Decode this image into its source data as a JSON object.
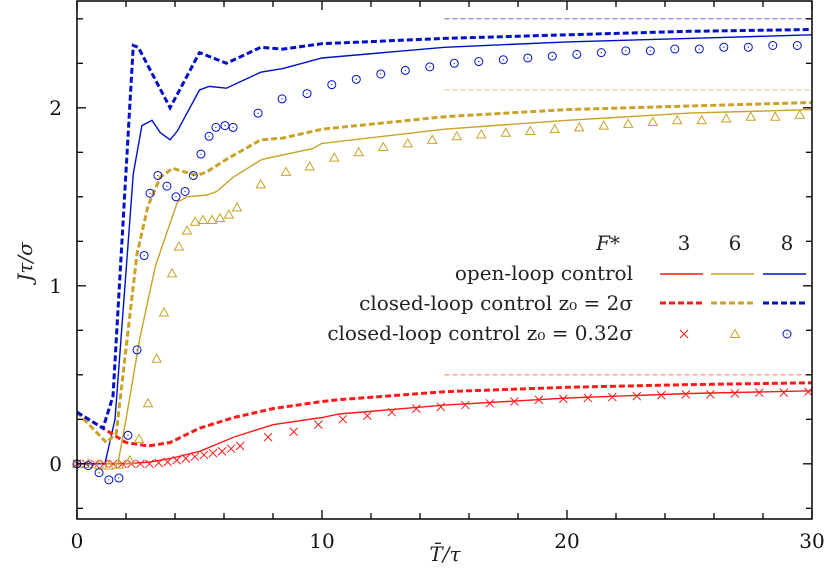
{
  "chart_data": {
    "type": "line",
    "xlabel": "T̄/τ",
    "ylabel": "Jτ/σ",
    "xlim": [
      0,
      30
    ],
    "ylim": [
      -0.31,
      2.6
    ],
    "xticks": [
      0,
      10,
      20,
      30
    ],
    "yticks": [
      0,
      1,
      2
    ],
    "grid": false,
    "legend": {
      "placement": "center-right",
      "header_label": "F*",
      "columns": [
        "3",
        "6",
        "8"
      ],
      "rows": [
        "open-loop control",
        "closed-loop control z₀ = 2σ",
        "closed-loop control z₀ = 0.32σ"
      ]
    },
    "colors": {
      "F3": "#ff1a1a",
      "F6": "#c9a227",
      "F8": "#0010c8"
    },
    "reference_lines": [
      {
        "F": "3",
        "y": 0.5,
        "x_from": 15,
        "x_to": 30
      },
      {
        "F": "6",
        "y": 2.1,
        "x_from": 15,
        "x_to": 30
      },
      {
        "F": "8",
        "y": 2.5,
        "x_from": 15,
        "x_to": 30
      }
    ],
    "series": [
      {
        "F": "3",
        "control": "open-loop",
        "style": "solid",
        "x": [
          0,
          1,
          2,
          3,
          3.8,
          5,
          6.4,
          8,
          10,
          10.7,
          15,
          20,
          25,
          30
        ],
        "y": [
          0,
          0,
          0,
          0.01,
          0.03,
          0.07,
          0.15,
          0.22,
          0.26,
          0.28,
          0.33,
          0.37,
          0.395,
          0.41
        ]
      },
      {
        "F": "6",
        "control": "open-loop",
        "style": "solid",
        "x": [
          0,
          1,
          1.67,
          2.0,
          2.57,
          3.2,
          3.67,
          4.1,
          4.5,
          5.3,
          5.7,
          6.37,
          7.55,
          9.6,
          10,
          15,
          20,
          25,
          30
        ],
        "y": [
          0,
          0,
          0,
          0.25,
          0.71,
          1.11,
          1.3,
          1.47,
          1.5,
          1.51,
          1.53,
          1.61,
          1.71,
          1.77,
          1.8,
          1.88,
          1.93,
          1.97,
          1.99
        ]
      },
      {
        "F": "8",
        "control": "open-loop",
        "style": "solid",
        "x": [
          0,
          1.14,
          1.55,
          2.3,
          2.65,
          3.06,
          3.4,
          3.8,
          4.1,
          5.0,
          5.4,
          6.1,
          6.4,
          7.5,
          8.4,
          10,
          15,
          20,
          25,
          30
        ],
        "y": [
          0,
          0,
          0.25,
          1.63,
          1.9,
          1.93,
          1.86,
          1.82,
          1.87,
          2.1,
          2.12,
          2.11,
          2.13,
          2.2,
          2.22,
          2.28,
          2.34,
          2.37,
          2.39,
          2.41
        ]
      },
      {
        "F": "3",
        "control": "closed-loop z0=2σ",
        "style": "dashed",
        "x": [
          0,
          1.06,
          2.0,
          2.9,
          3.8,
          5.0,
          6.4,
          8.0,
          10,
          10.7,
          15,
          20,
          25,
          30
        ],
        "y": [
          0.29,
          0.2,
          0.12,
          0.1,
          0.12,
          0.2,
          0.26,
          0.31,
          0.35,
          0.36,
          0.405,
          0.43,
          0.445,
          0.455
        ]
      },
      {
        "F": "6",
        "control": "closed-loop z0=2σ",
        "style": "dashed",
        "x": [
          0,
          1.2,
          1.6,
          2.45,
          2.9,
          3.4,
          3.9,
          4.4,
          4.9,
          5.3,
          6.1,
          7.5,
          8.4,
          10,
          15,
          20,
          25,
          30
        ],
        "y": [
          0.29,
          0.12,
          0.17,
          1.18,
          1.45,
          1.61,
          1.66,
          1.64,
          1.62,
          1.64,
          1.71,
          1.82,
          1.83,
          1.88,
          1.95,
          1.99,
          2.01,
          2.03
        ]
      },
      {
        "F": "8",
        "control": "closed-loop z0=2σ",
        "style": "dashed",
        "x": [
          0,
          1.06,
          1.47,
          2.3,
          2.5,
          3.8,
          5.0,
          6.1,
          7.5,
          8.4,
          10,
          15,
          20,
          25,
          30
        ],
        "y": [
          0.29,
          0.2,
          0.38,
          2.35,
          2.34,
          2.0,
          2.31,
          2.25,
          2.34,
          2.33,
          2.36,
          2.39,
          2.41,
          2.43,
          2.44
        ]
      },
      {
        "F": "3",
        "control": "closed-loop z0=0.32σ",
        "style": "cross",
        "x": [
          0,
          0.37,
          0.74,
          1.11,
          1.48,
          1.85,
          2.22,
          2.59,
          2.96,
          3.33,
          3.7,
          4.07,
          4.44,
          4.81,
          5.18,
          5.55,
          5.92,
          6.29,
          6.66,
          7.8,
          8.85,
          9.85,
          10.85,
          11.85,
          12.85,
          13.85,
          14.85,
          15.85,
          16.85,
          17.85,
          18.85,
          19.85,
          20.85,
          21.85,
          22.85,
          23.85,
          24.85,
          25.85,
          26.85,
          27.85,
          28.85,
          29.85
        ],
        "y": [
          0,
          0,
          0,
          0,
          0,
          0,
          0,
          0,
          0,
          0.005,
          0.01,
          0.02,
          0.03,
          0.04,
          0.05,
          0.06,
          0.07,
          0.085,
          0.1,
          0.15,
          0.18,
          0.22,
          0.25,
          0.27,
          0.29,
          0.31,
          0.32,
          0.33,
          0.34,
          0.35,
          0.36,
          0.365,
          0.37,
          0.375,
          0.38,
          0.385,
          0.39,
          0.39,
          0.395,
          0.4,
          0.4,
          0.405
        ]
      },
      {
        "F": "6",
        "control": "closed-loop z0=0.32σ",
        "style": "triangle",
        "x": [
          0,
          0.46,
          0.9,
          1.3,
          1.71,
          2.16,
          2.53,
          2.9,
          3.25,
          3.55,
          3.88,
          4.16,
          4.49,
          4.82,
          5.14,
          5.51,
          5.84,
          6.2,
          6.53,
          7.5,
          8.53,
          9.5,
          10.5,
          11.5,
          12.5,
          13.5,
          14.5,
          15.5,
          16.5,
          17.5,
          18.5,
          19.5,
          20.5,
          21.5,
          22.5,
          23.5,
          24.5,
          25.5,
          26.5,
          27.5,
          28.5,
          29.5
        ],
        "y": [
          0,
          0,
          -0.005,
          -0.01,
          -0.005,
          0.02,
          0.14,
          0.34,
          0.59,
          0.85,
          1.07,
          1.22,
          1.31,
          1.36,
          1.37,
          1.37,
          1.38,
          1.4,
          1.44,
          1.57,
          1.64,
          1.67,
          1.72,
          1.75,
          1.78,
          1.8,
          1.82,
          1.84,
          1.85,
          1.86,
          1.87,
          1.88,
          1.89,
          1.9,
          1.91,
          1.92,
          1.93,
          1.93,
          1.94,
          1.95,
          1.95,
          1.96
        ]
      },
      {
        "F": "8",
        "control": "closed-loop z0=0.32σ",
        "style": "circle",
        "x": [
          0,
          0.46,
          0.9,
          1.3,
          1.71,
          2.08,
          2.45,
          2.74,
          2.98,
          3.3,
          3.67,
          4.04,
          4.41,
          4.75,
          5.06,
          5.39,
          5.67,
          6.04,
          6.37,
          7.39,
          8.37,
          9.39,
          10.4,
          11.4,
          12.4,
          13.4,
          14.4,
          15.4,
          16.4,
          17.4,
          18.4,
          19.4,
          20.4,
          21.4,
          22.4,
          23.4,
          24.4,
          25.4,
          26.4,
          27.4,
          28.4,
          29.4
        ],
        "y": [
          0,
          -0.01,
          -0.05,
          -0.09,
          -0.08,
          0.16,
          0.64,
          1.17,
          1.52,
          1.62,
          1.56,
          1.5,
          1.53,
          1.62,
          1.74,
          1.84,
          1.89,
          1.9,
          1.89,
          1.97,
          2.05,
          2.08,
          2.13,
          2.16,
          2.19,
          2.21,
          2.23,
          2.25,
          2.26,
          2.27,
          2.28,
          2.29,
          2.3,
          2.31,
          2.32,
          2.32,
          2.33,
          2.33,
          2.34,
          2.34,
          2.35,
          2.35
        ]
      }
    ]
  }
}
